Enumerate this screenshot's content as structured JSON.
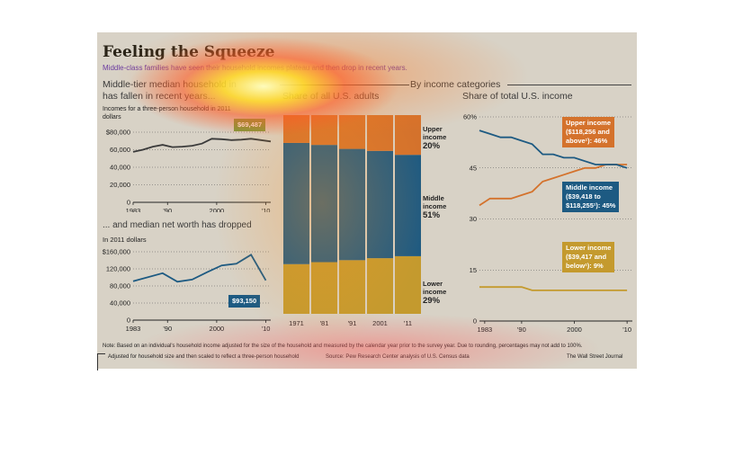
{
  "header": {
    "title": "Feeling the Squeeze",
    "subtitle": "Middle-class families have seen their household incomes plateau and then drop in recent years.",
    "by_income_label": "By income categories"
  },
  "left_top": {
    "heading_line1": "Middle-tier median household in",
    "heading_line2": "has fallen in recent years...",
    "unit_line1": "Incomes for a three-person household in 2011",
    "unit_line2": "dollars",
    "callout": "$69,487"
  },
  "left_bottom": {
    "heading": "... and median net worth has dropped",
    "unit": "In 2011 dollars",
    "callout": "$93,150"
  },
  "middle": {
    "heading": "Share of all U.S. adults",
    "labels": {
      "upper": [
        "Upper",
        "income",
        "20%"
      ],
      "middle": [
        "Middle",
        "income",
        "51%"
      ],
      "lower": [
        "Lower",
        "income",
        "29%"
      ]
    }
  },
  "right": {
    "heading": "Share of total U.S. income",
    "upper_callout": [
      "Upper income",
      "($118,256 and",
      "above¹): 46%"
    ],
    "middle_callout": [
      "Middle income",
      "($39,418 to",
      "$118,255¹): 45%"
    ],
    "lower_callout": [
      "Lower income",
      "($39,417 and",
      "below¹): 9%"
    ]
  },
  "footer": {
    "note": "Note: Based on an individual's household income adjusted for the size of the household and measured by the calendar year prior to the survey year. Due to rounding, percentages may not add to 100%.",
    "footnote": "Adjusted for household size and then scaled to reflect a three-person household",
    "source": "Source: Pew Research Center analysis of U.S. Census data",
    "credit": "The Wall Street Journal"
  },
  "colors": {
    "upper": "#d4722c",
    "middle": "#1d5a82",
    "lower": "#c49a2e",
    "panel_bg": "#d8d2c6"
  },
  "chart_data": [
    {
      "type": "line",
      "ylim": [
        0,
        80000
      ],
      "yticks": [
        "$80,000",
        "60,000",
        "40,000",
        "20,000",
        "0"
      ],
      "xticks": [
        "1983",
        "'90",
        "2000",
        "'10"
      ],
      "x": [
        1983,
        1985,
        1987,
        1989,
        1991,
        1993,
        1995,
        1997,
        1999,
        2001,
        2003,
        2005,
        2007,
        2009,
        2011
      ],
      "series": [
        {
          "values": [
            57500,
            60000,
            63500,
            65500,
            63000,
            63500,
            64500,
            67000,
            72500,
            72000,
            71000,
            71500,
            72500,
            71000,
            69487
          ]
        }
      ]
    },
    {
      "type": "line",
      "ylim": [
        0,
        160000
      ],
      "yticks": [
        "$160,000",
        "120,000",
        "80,000",
        "40,000",
        "0"
      ],
      "xticks": [
        "1983",
        "'90",
        "2000",
        "'10"
      ],
      "x": [
        1983,
        1989,
        1992,
        1995,
        1998,
        2001,
        2004,
        2007,
        2010
      ],
      "series": [
        {
          "values": [
            91000,
            110000,
            90000,
            95000,
            112000,
            128000,
            132000,
            153000,
            93150
          ]
        }
      ]
    },
    {
      "type": "bar",
      "categories": [
        "1971",
        "'81",
        "'91",
        "2001",
        "'11"
      ],
      "series": [
        {
          "name": "Lower income",
          "values": [
            25,
            26,
            27,
            28,
            29
          ]
        },
        {
          "name": "Middle income",
          "values": [
            61,
            59,
            56,
            54,
            51
          ]
        },
        {
          "name": "Upper income",
          "values": [
            14,
            15,
            17,
            18,
            20
          ]
        }
      ]
    },
    {
      "type": "line",
      "ylim": [
        0,
        60
      ],
      "yticks": [
        "60%",
        "45",
        "30",
        "15",
        "0"
      ],
      "xticks": [
        "1983",
        "'90",
        "2000",
        "'10"
      ],
      "x": [
        1982,
        1984,
        1986,
        1988,
        1990,
        1992,
        1994,
        1996,
        1998,
        2000,
        2002,
        2004,
        2006,
        2008,
        2010
      ],
      "series": [
        {
          "name": "Upper income",
          "values": [
            34,
            36,
            36,
            36,
            37,
            38,
            41,
            42,
            43,
            44,
            45,
            45,
            46,
            46,
            46
          ]
        },
        {
          "name": "Middle income",
          "values": [
            56,
            55,
            54,
            54,
            53,
            52,
            49,
            49,
            48,
            48,
            47,
            46,
            46,
            46,
            45
          ]
        },
        {
          "name": "Lower income",
          "values": [
            10,
            10,
            10,
            10,
            10,
            9,
            9,
            9,
            9,
            9,
            9,
            9,
            9,
            9,
            9
          ]
        }
      ]
    }
  ]
}
